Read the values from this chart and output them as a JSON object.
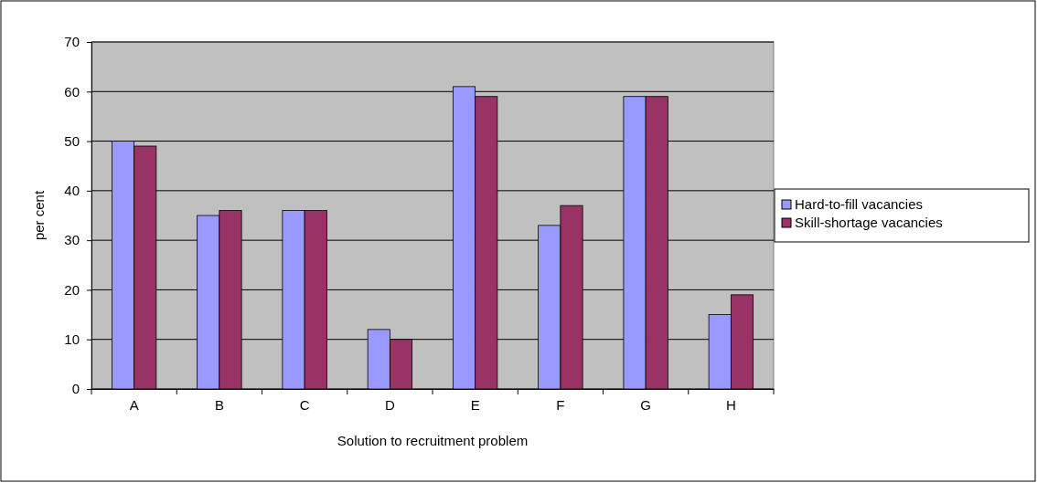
{
  "chart_data": {
    "type": "bar",
    "xlabel": "Solution to recruitment problem",
    "ylabel": "per cent",
    "categories": [
      "A",
      "B",
      "C",
      "D",
      "E",
      "F",
      "G",
      "H"
    ],
    "series": [
      {
        "name": "Hard-to-fill vacancies",
        "color": "#9999ff",
        "values": [
          50,
          35,
          36,
          12,
          61,
          33,
          59,
          15
        ]
      },
      {
        "name": "Skill-shortage vacancies",
        "color": "#993366",
        "values": [
          49,
          36,
          36,
          10,
          59,
          37,
          59,
          19
        ]
      }
    ],
    "ylim": [
      0,
      70
    ],
    "yticks": [
      0,
      10,
      20,
      30,
      40,
      50,
      60,
      70
    ],
    "grid": "y",
    "legend": "right"
  }
}
